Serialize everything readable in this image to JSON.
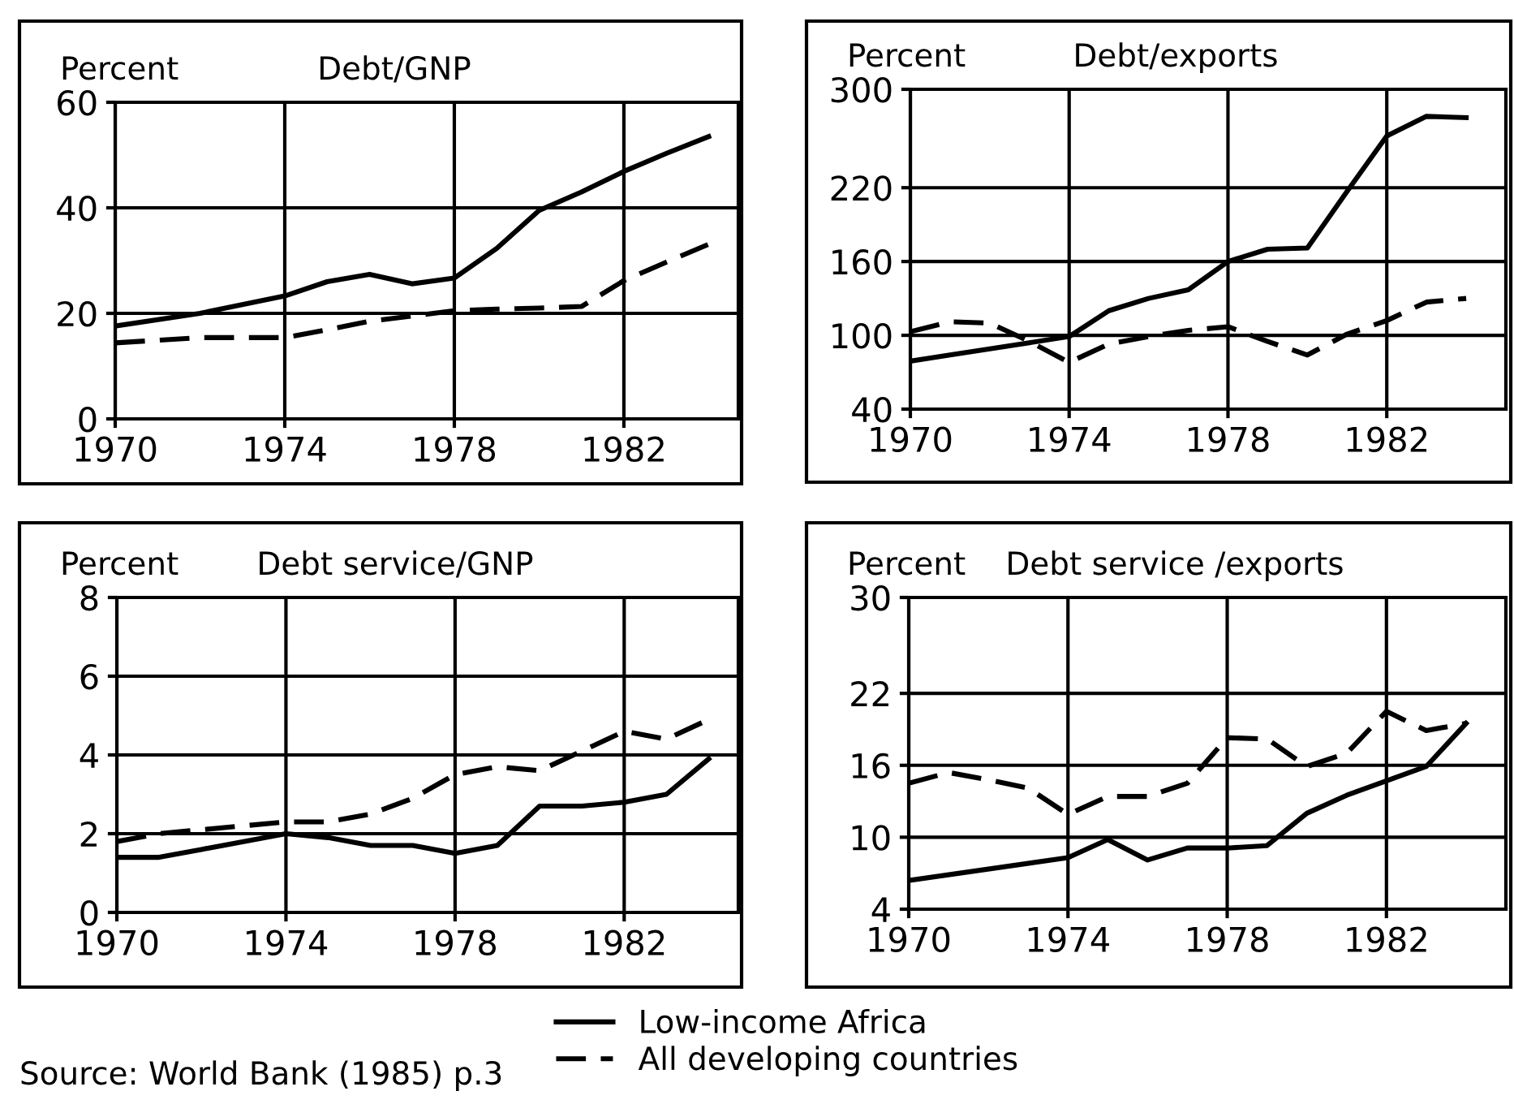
{
  "chart_data": [
    {
      "type": "line",
      "title": "Debt/GNP",
      "ylabel": "Percent",
      "x": [
        1970,
        1972,
        1974,
        1975,
        1976,
        1977,
        1978,
        1979,
        1980,
        1981,
        1982,
        1983,
        1984
      ],
      "xlim": [
        1970,
        1984.7
      ],
      "xticks": [
        1970,
        1974,
        1978,
        1982
      ],
      "ylim": [
        0,
        60
      ],
      "yticks": [
        0,
        20,
        40,
        60
      ],
      "grid": true,
      "legend": "bottom",
      "series": [
        {
          "name": "Low-income Africa",
          "color": "#000000",
          "line_style": "solid",
          "values": [
            17.6,
            20,
            23.3,
            26,
            27.4,
            25.6,
            26.7,
            32.3,
            39.5,
            43,
            46.9,
            50.3,
            53.5
          ]
        },
        {
          "name": "All developing countries",
          "color": "#000000",
          "line_style": "dashed",
          "values": [
            14.4,
            15.4,
            15.4,
            16.9,
            18.5,
            19.5,
            20.5,
            20.8,
            21,
            21.3,
            26.2,
            29.7,
            33.1
          ]
        }
      ]
    },
    {
      "type": "line",
      "title": "Debt/exports",
      "ylabel": "Percent",
      "x": [
        1970,
        1971,
        1972,
        1973,
        1974,
        1975,
        1976,
        1977,
        1978,
        1979,
        1980,
        1981,
        1982,
        1983,
        1984
      ],
      "xlim": [
        1970,
        1985
      ],
      "xticks": [
        1970,
        1974,
        1978,
        1982
      ],
      "ylim": [
        40,
        300
      ],
      "yticks": [
        40,
        100,
        160,
        220,
        300
      ],
      "grid": true,
      "series": [
        {
          "color": "#000000",
          "line_style": "solid",
          "values": [
            79,
            84,
            89,
            94,
            99,
            120,
            130,
            137,
            160,
            170,
            171,
            217,
            262,
            278,
            277
          ]
        },
        {
          "color": "#000000",
          "line_style": "dashed",
          "values": [
            103,
            111,
            110,
            95,
            78,
            93,
            99,
            104,
            107,
            95,
            84,
            101,
            112,
            127,
            130
          ]
        }
      ]
    },
    {
      "type": "line",
      "title": "Debt service/GNP",
      "ylabel": "Percent",
      "x": [
        1970,
        1971,
        1972,
        1973,
        1974,
        1975,
        1976,
        1977,
        1978,
        1979,
        1980,
        1981,
        1982,
        1983,
        1984
      ],
      "xlim": [
        1970,
        1984.7
      ],
      "xticks": [
        1970,
        1974,
        1978,
        1982
      ],
      "ylim": [
        0,
        8
      ],
      "yticks": [
        0,
        2,
        4,
        6,
        8
      ],
      "grid": true,
      "annotations": [
        "Source: World Bank (1985) p.3"
      ],
      "series": [
        {
          "color": "#000000",
          "line_style": "solid",
          "values": [
            1.4,
            1.4,
            1.6,
            1.8,
            2.0,
            1.9,
            1.7,
            1.7,
            1.5,
            1.7,
            2.7,
            2.7,
            2.8,
            3.0,
            3.9
          ]
        },
        {
          "color": "#000000",
          "line_style": "dashed",
          "values": [
            1.8,
            2.0,
            2.1,
            2.2,
            2.3,
            2.3,
            2.5,
            2.9,
            3.5,
            3.7,
            3.6,
            4.1,
            4.6,
            4.4,
            4.9
          ]
        }
      ]
    },
    {
      "type": "line",
      "title": "Debt service /exports",
      "ylabel": "Percent",
      "x": [
        1970,
        1974,
        1975,
        1976,
        1977,
        1978,
        1979,
        1980,
        1981,
        1982,
        1983,
        1984
      ],
      "xlim": [
        1970,
        1985
      ],
      "xticks": [
        1970,
        1974,
        1978,
        1982
      ],
      "ylim": [
        4,
        30
      ],
      "yticks": [
        4,
        10,
        16,
        22,
        30
      ],
      "grid": true,
      "series": [
        {
          "color": "#000000",
          "line_style": "solid",
          "values": [
            6.4,
            8.3,
            9.8,
            8.1,
            9.1,
            9.1,
            9.3,
            12.0,
            13.5,
            14.7,
            15.9,
            19.5
          ]
        },
        {
          "color": "#000000",
          "line_style": "dashed",
          "x": [
            1970,
            1971,
            1972,
            1973,
            1974,
            1975,
            1976,
            1977,
            1978,
            1979,
            1980,
            1981,
            1982,
            1983,
            1984
          ],
          "values": [
            14.5,
            15.4,
            14.8,
            14.1,
            11.9,
            13.4,
            13.4,
            14.5,
            18.3,
            18.2,
            15.9,
            17,
            20.5,
            18.9,
            19.5
          ]
        }
      ]
    }
  ]
}
